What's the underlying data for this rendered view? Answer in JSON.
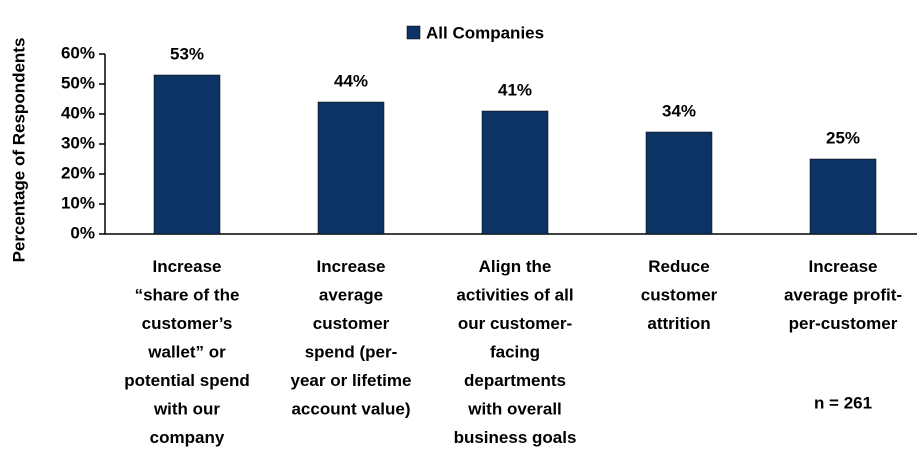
{
  "chart_data": {
    "type": "bar",
    "y_axis_label": "Percentage of Respondents",
    "legend": "All Companies",
    "annotation": "n = 261",
    "categories": [
      "Increase\n“share of the\ncustomer’s\nwallet” or\npotential spend\nwith our\ncompany",
      "Increase\naverage\ncustomer\nspend (per-\nyear or lifetime\naccount value)",
      "Align the\nactivities of all\nour customer-\nfacing\ndepartments\nwith overall\nbusiness goals",
      "Reduce\ncustomer\nattrition",
      "Increase\naverage profit-\nper-customer"
    ],
    "values": [
      53,
      44,
      41,
      34,
      25
    ],
    "value_labels": [
      "53%",
      "44%",
      "41%",
      "34%",
      "25%"
    ],
    "color": "#0d3364",
    "ylim": [
      0,
      60
    ],
    "yticks": [
      {
        "value": 0,
        "label": "0%"
      },
      {
        "value": 10,
        "label": "10%"
      },
      {
        "value": 20,
        "label": "20%"
      },
      {
        "value": 30,
        "label": "30%"
      },
      {
        "value": 40,
        "label": "40%"
      },
      {
        "value": 50,
        "label": "50%"
      },
      {
        "value": 60,
        "label": "60%"
      }
    ]
  }
}
